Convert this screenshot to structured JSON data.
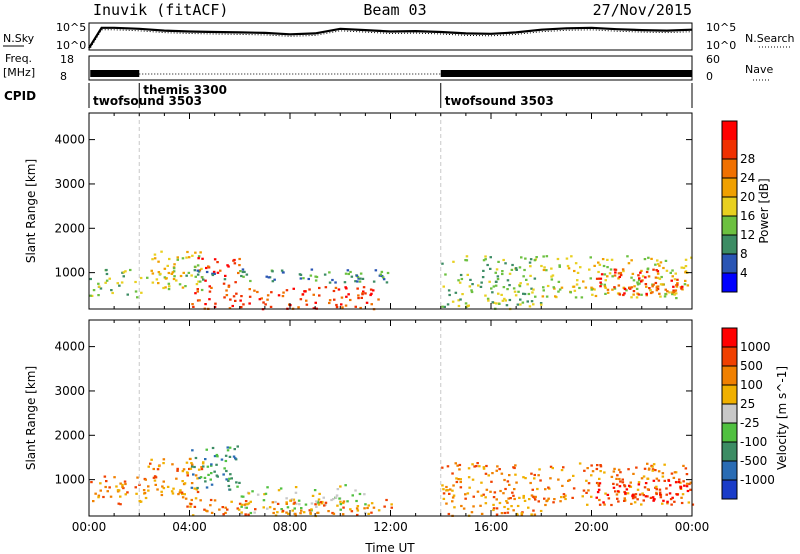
{
  "header": {
    "station": "Inuvik (fitACF)",
    "beam": "Beam 03",
    "date": "27/Nov/2015"
  },
  "colors": {
    "nsky_trace": "#000000",
    "dash_lines": "#c8c8c8",
    "frame": "#000000"
  },
  "chart_data": [
    {
      "type": "line",
      "panel": "noise",
      "left_label": "N.Sky",
      "right_label": "N.Search",
      "left_ticks": [
        "10^5",
        "10^0"
      ],
      "right_ticks": [
        "10^5",
        "10^0"
      ],
      "x": [
        0,
        0.5,
        1,
        1.5,
        2,
        3,
        4,
        5,
        6,
        7,
        8,
        9,
        10,
        11,
        12,
        13,
        14,
        15,
        16,
        17,
        18,
        19,
        20,
        21,
        22,
        23,
        24
      ],
      "nsky_log": [
        0.2,
        4.6,
        4.6,
        4.5,
        4.4,
        4.0,
        3.8,
        3.7,
        3.6,
        3.5,
        3.2,
        3.4,
        4.4,
        4.1,
        3.8,
        3.9,
        3.7,
        3.4,
        3.3,
        3.6,
        4.2,
        4.5,
        4.6,
        4.3,
        4.1,
        4.0,
        4.2
      ],
      "ylim": [
        0,
        5
      ]
    },
    {
      "type": "line",
      "panel": "frequency",
      "left_label": "Freq.",
      "left_unit": "[MHz]",
      "right_label": "Nave",
      "left_ticks": [
        "18",
        "8"
      ],
      "right_ticks": [
        "60",
        "0"
      ],
      "segments": [
        {
          "x": [
            0.05,
            2.0
          ],
          "freq_mhz": 10.5,
          "band": true
        },
        {
          "x": [
            2.0,
            14.0
          ],
          "freq_mhz": 10.0,
          "band": false
        },
        {
          "x": [
            14.0,
            24.0
          ],
          "freq_mhz": 10.5,
          "band": true
        }
      ]
    },
    {
      "type": "table",
      "panel": "cpid",
      "label": "CPID",
      "programs": [
        {
          "name": "twofsound 3503",
          "start_hour": 0
        },
        {
          "name": "themis 3300",
          "start_hour": 2.0
        },
        {
          "name": "twofsound 3503",
          "start_hour": 14.0
        }
      ]
    },
    {
      "type": "heatmap",
      "panel": "power",
      "ylabel": "Slant Range [km]",
      "yticks": [
        1000,
        2000,
        3000,
        4000
      ],
      "ylim": [
        180,
        4600
      ],
      "xlim": [
        0,
        24
      ],
      "colorbar": {
        "label": "Power [dB]",
        "ticks": [
          "4",
          "8",
          "12",
          "16",
          "20",
          "24",
          "28"
        ],
        "colors": [
          "#0000ff",
          "#2a55b4",
          "#3c8c64",
          "#6cc040",
          "#e8d020",
          "#f0a000",
          "#f07000",
          "#f03000",
          "#ff0000"
        ]
      },
      "scatter_regions": [
        {
          "x": [
            0,
            2.2
          ],
          "r": [
            450,
            1100
          ],
          "level": 3
        },
        {
          "x": [
            2.2,
            4.5
          ],
          "r": [
            600,
            1500
          ],
          "level": 4
        },
        {
          "x": [
            4.3,
            6.0
          ],
          "r": [
            700,
            1350
          ],
          "level": 7
        },
        {
          "x": [
            4.0,
            11.5
          ],
          "r": [
            200,
            700
          ],
          "level": 7
        },
        {
          "x": [
            3.8,
            12.0
          ],
          "r": [
            800,
            1100
          ],
          "level": 2
        },
        {
          "x": [
            14.0,
            18.0
          ],
          "r": [
            200,
            1400
          ],
          "level": 3
        },
        {
          "x": [
            18.0,
            24.0
          ],
          "r": [
            450,
            1400
          ],
          "level": 4
        },
        {
          "x": [
            20.0,
            23.8
          ],
          "r": [
            500,
            1100
          ],
          "level": 7
        }
      ]
    },
    {
      "type": "heatmap",
      "panel": "velocity",
      "ylabel": "Slant Range [km]",
      "yticks": [
        1000,
        2000,
        3000,
        4000
      ],
      "ylim": [
        180,
        4600
      ],
      "xlim": [
        0,
        24
      ],
      "xticks": [
        "00:00",
        "04:00",
        "08:00",
        "12:00",
        "16:00",
        "20:00",
        "00:00"
      ],
      "xlabel": "Time UT",
      "colorbar": {
        "label": "Velocity [m s^-1]",
        "ticks": [
          "1000",
          "500",
          "100",
          "25",
          "-25",
          "-100",
          "-500",
          "-1000"
        ],
        "colors": [
          "#1a3cc8",
          "#2a6cb4",
          "#3c8c64",
          "#50c040",
          "#c8c8c8",
          "#f0b000",
          "#f08000",
          "#f04000",
          "#ff0000"
        ]
      },
      "scatter_regions": [
        {
          "x": [
            0,
            2.2
          ],
          "r": [
            450,
            1100
          ],
          "level": 6
        },
        {
          "x": [
            2.2,
            4.5
          ],
          "r": [
            600,
            1500
          ],
          "level": 6
        },
        {
          "x": [
            4.0,
            6.0
          ],
          "r": [
            800,
            1800
          ],
          "level": 2
        },
        {
          "x": [
            6.0,
            11.0
          ],
          "r": [
            250,
            900
          ],
          "level": 4
        },
        {
          "x": [
            3.8,
            12.0
          ],
          "r": [
            200,
            600
          ],
          "level": 6
        },
        {
          "x": [
            14.0,
            18.0
          ],
          "r": [
            200,
            1400
          ],
          "level": 6
        },
        {
          "x": [
            18.0,
            24.0
          ],
          "r": [
            450,
            1400
          ],
          "level": 6
        },
        {
          "x": [
            20.0,
            23.8
          ],
          "r": [
            500,
            1000
          ],
          "level": 8
        }
      ]
    }
  ]
}
